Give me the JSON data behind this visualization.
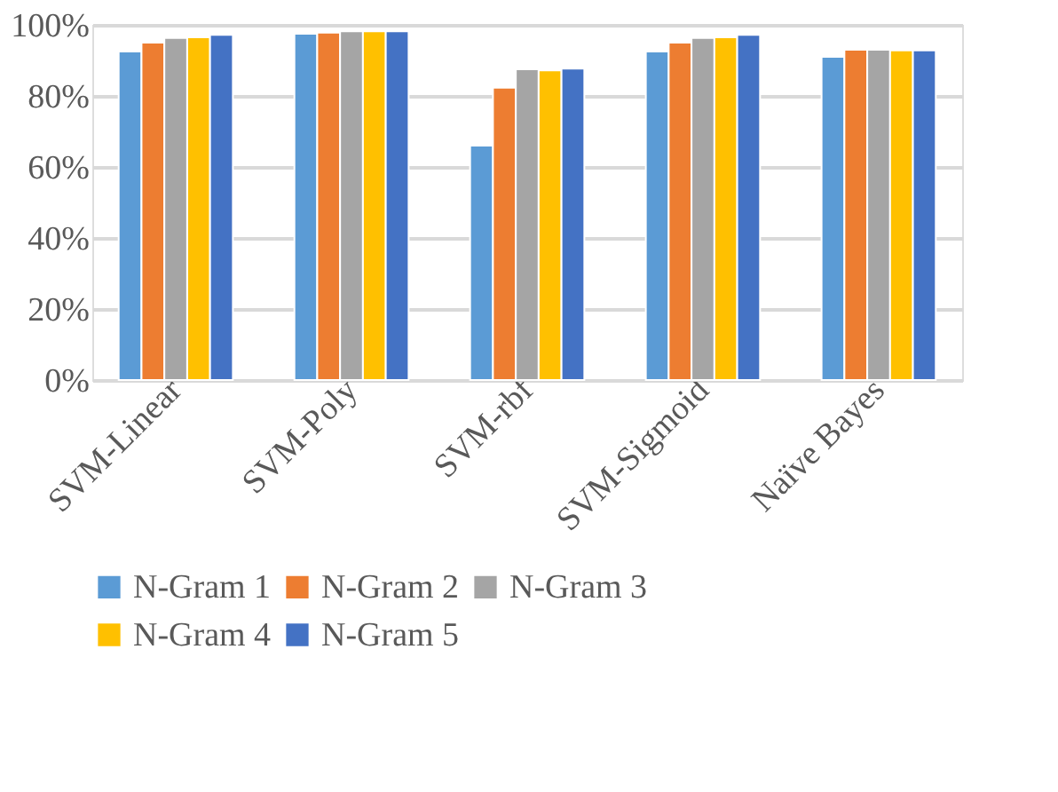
{
  "chart_data": {
    "type": "bar",
    "categories": [
      "SVM-Linear",
      "SVM-Poly",
      "SVM-rbf",
      "SVM-Sigmoid",
      "Naïve Bayes"
    ],
    "series": [
      {
        "name": "N-Gram 1",
        "color": "#5b9bd5",
        "values": [
          92.5,
          97.5,
          66,
          92.5,
          91
        ]
      },
      {
        "name": "N-Gram 2",
        "color": "#ed7d31",
        "values": [
          95,
          97.8,
          82.3,
          95,
          93
        ]
      },
      {
        "name": "N-Gram 3",
        "color": "#a5a5a5",
        "values": [
          96.3,
          98.2,
          87.5,
          96.3,
          93
        ]
      },
      {
        "name": "N-Gram 4",
        "color": "#ffc000",
        "values": [
          96.5,
          98.2,
          87.2,
          96.5,
          92.8
        ]
      },
      {
        "name": "N-Gram 5",
        "color": "#4472c4",
        "values": [
          97.2,
          98.2,
          87.7,
          97.2,
          92.8
        ]
      }
    ],
    "ylim": [
      0,
      100
    ],
    "yticks": [
      {
        "value": 0,
        "label": "0%"
      },
      {
        "value": 20,
        "label": "20%"
      },
      {
        "value": 40,
        "label": "40%"
      },
      {
        "value": 60,
        "label": "60%"
      },
      {
        "value": 80,
        "label": "80%"
      },
      {
        "value": 100,
        "label": "100%"
      }
    ],
    "grid": "y",
    "legend": "bottom"
  }
}
